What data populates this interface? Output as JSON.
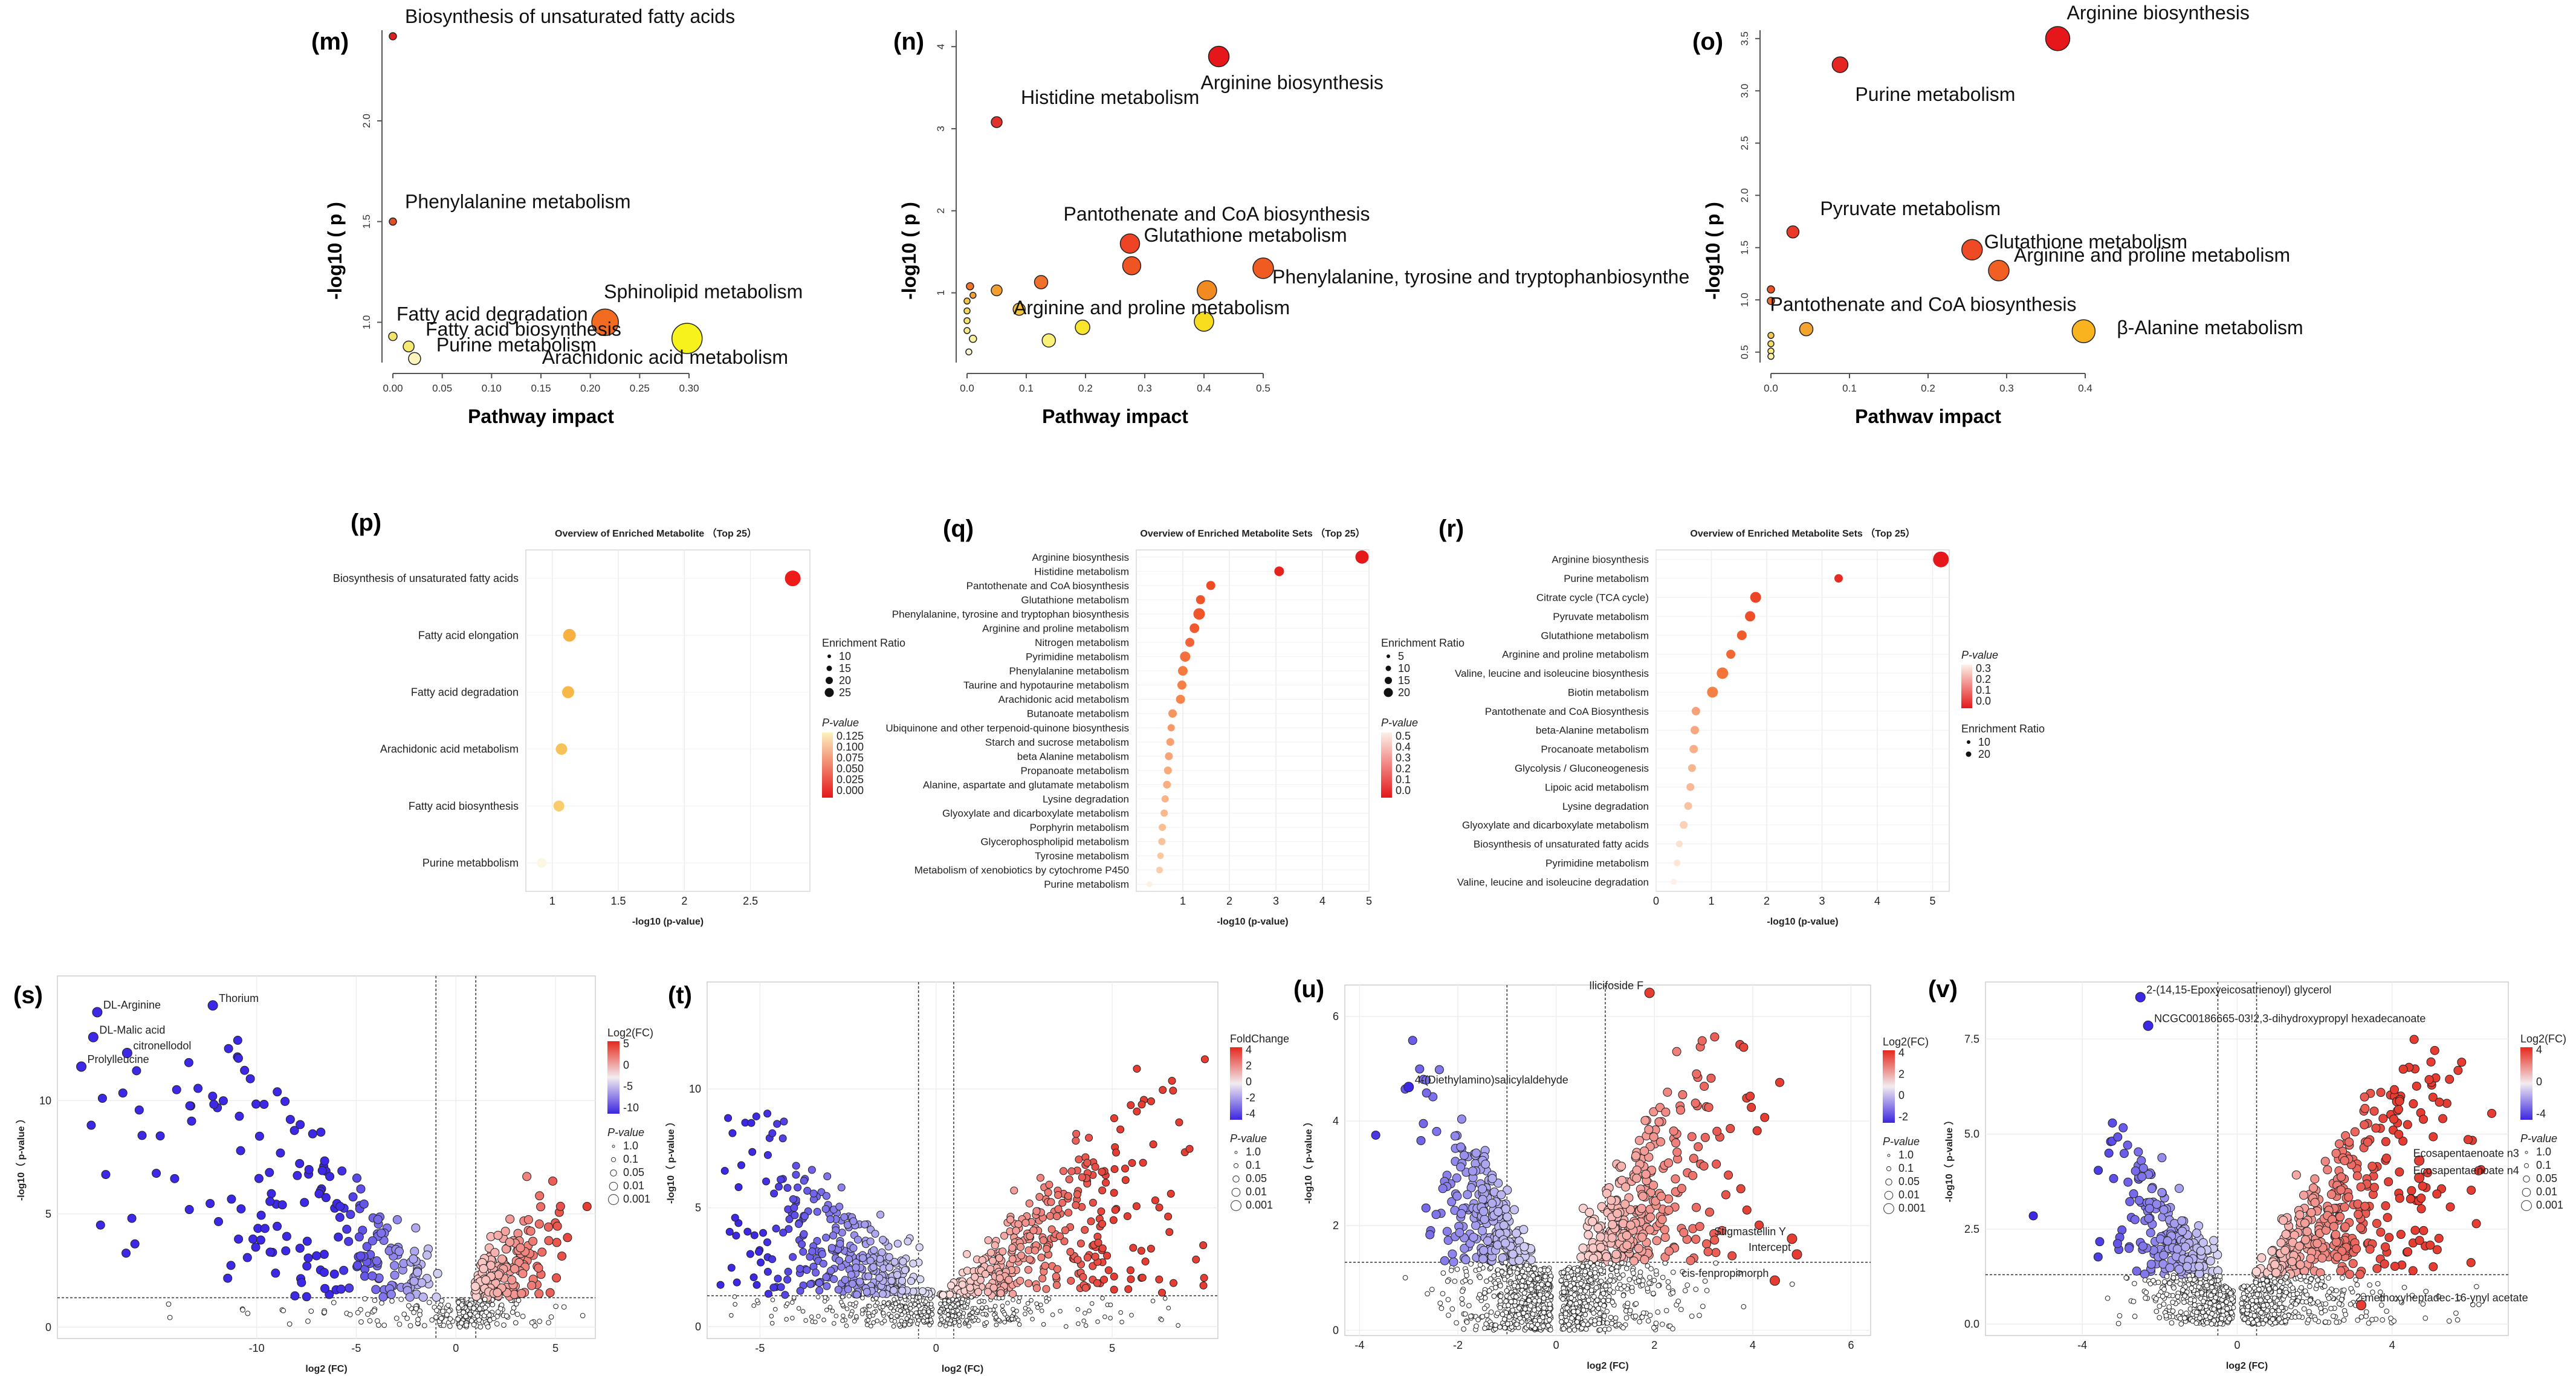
{
  "figure_letters": [
    "(m)",
    "(n)",
    "(o)",
    "(p)",
    "(q)",
    "(r)",
    "(s)",
    "(t)",
    "(u)",
    "(v)"
  ],
  "chart_data": [
    {
      "id": "m",
      "type": "scatter",
      "title": "",
      "xlabel": "Pathway impact",
      "ylabel": "-log10 ( p )",
      "xlim": [
        0,
        0.3
      ],
      "ylim": [
        0.8,
        2.45
      ],
      "xticks": [
        "0.00",
        "0.05",
        "0.10",
        "0.15",
        "0.20",
        "0.25",
        "0.30"
      ],
      "yticks": [
        "1.0",
        "1.5",
        "2.0"
      ],
      "points": [
        {
          "x": 0.0,
          "y": 2.42,
          "size": 6,
          "color": "#e0201f",
          "label": "Biosynthesis of unsaturated fatty acids"
        },
        {
          "x": 0.0,
          "y": 1.5,
          "size": 6,
          "color": "#e0502a",
          "label": "Phenylalanine metabolism"
        },
        {
          "x": 0.0,
          "y": 0.93,
          "size": 7,
          "color": "#f2e36a",
          "label": "Fatty acid degradation"
        },
        {
          "x": 0.016,
          "y": 0.88,
          "size": 9,
          "color": "#f5ea70",
          "label": "Fatty acid biosynthesis"
        },
        {
          "x": 0.022,
          "y": 0.82,
          "size": 10,
          "color": "#fbf4bd",
          "label": "Purine metabolism"
        },
        {
          "x": 0.215,
          "y": 1.0,
          "size": 22,
          "color": "#f26b21",
          "label": "Sphinolipid metabolism"
        },
        {
          "x": 0.298,
          "y": 0.92,
          "size": 25,
          "color": "#f7f21c",
          "label": "Arachidonic acid metabolism"
        }
      ]
    },
    {
      "id": "n",
      "type": "scatter",
      "title": "",
      "xlabel": "Pathway impact",
      "ylabel": "-log10 ( p )",
      "xlim": [
        0,
        0.5
      ],
      "ylim": [
        0.15,
        4.2
      ],
      "xticks": [
        "0.0",
        "0.1",
        "0.2",
        "0.3",
        "0.4",
        "0.5"
      ],
      "yticks": [
        "1",
        "2",
        "3",
        "4"
      ],
      "points": [
        {
          "x": 0.425,
          "y": 3.88,
          "size": 17,
          "color": "#e5171a",
          "label": "Arginine biosynthesis"
        },
        {
          "x": 0.05,
          "y": 3.08,
          "size": 9,
          "color": "#e2302a",
          "label": "Histidine metabolism"
        },
        {
          "x": 0.275,
          "y": 1.6,
          "size": 16,
          "color": "#ec4424",
          "label": "Pantothenate and CoA biosynthesis"
        },
        {
          "x": 0.278,
          "y": 1.33,
          "size": 15,
          "color": "#ef5522",
          "label": "Glutathione metabolism"
        },
        {
          "x": 0.5,
          "y": 1.3,
          "size": 17,
          "color": "#f05b22",
          "label": "Phenylalanine, tyrosine and tryptophanbiosynthe"
        },
        {
          "x": 0.405,
          "y": 1.03,
          "size": 16,
          "color": "#f28a22",
          "label": ""
        },
        {
          "x": 0.4,
          "y": 0.65,
          "size": 16,
          "color": "#f8dd1f",
          "label": "Arginine and proline metabolism"
        },
        {
          "x": 0.125,
          "y": 1.13,
          "size": 11,
          "color": "#f0702a",
          "label": ""
        },
        {
          "x": 0.05,
          "y": 1.03,
          "size": 9,
          "color": "#f39e2e",
          "label": ""
        },
        {
          "x": 0.088,
          "y": 0.8,
          "size": 10,
          "color": "#f5c33a",
          "label": ""
        },
        {
          "x": 0.195,
          "y": 0.58,
          "size": 12,
          "color": "#f8e52c",
          "label": ""
        },
        {
          "x": 0.138,
          "y": 0.42,
          "size": 11,
          "color": "#faf07a",
          "label": ""
        },
        {
          "x": 0.005,
          "y": 1.08,
          "size": 6,
          "color": "#f2742a",
          "label": ""
        },
        {
          "x": 0.01,
          "y": 0.97,
          "size": 5,
          "color": "#f3a33a",
          "label": ""
        },
        {
          "x": 0.0,
          "y": 0.9,
          "size": 5,
          "color": "#f5c444",
          "label": ""
        },
        {
          "x": 0.0,
          "y": 0.78,
          "size": 5,
          "color": "#f6d657",
          "label": ""
        },
        {
          "x": 0.0,
          "y": 0.66,
          "size": 5,
          "color": "#f7e26a",
          "label": ""
        },
        {
          "x": 0.0,
          "y": 0.54,
          "size": 5,
          "color": "#f9ea86",
          "label": ""
        },
        {
          "x": 0.01,
          "y": 0.44,
          "size": 6,
          "color": "#faf29e",
          "label": ""
        },
        {
          "x": 0.003,
          "y": 0.28,
          "size": 5,
          "color": "#fcf8d2",
          "label": ""
        }
      ]
    },
    {
      "id": "o",
      "type": "scatter",
      "title": "",
      "xlabel": "Pathwav impact",
      "ylabel": "-log10 ( p )",
      "xlim": [
        0,
        0.4
      ],
      "ylim": [
        0.4,
        3.58
      ],
      "xticks": [
        "0.0",
        "0.1",
        "0.2",
        "0.3",
        "0.4"
      ],
      "yticks": [
        "0.5",
        "1.0",
        "1.5",
        "2.0",
        "2.5",
        "3.0",
        "3.5"
      ],
      "points": [
        {
          "x": 0.365,
          "y": 3.5,
          "size": 20,
          "color": "#e5171a",
          "label": "Arginine biosynthesis"
        },
        {
          "x": 0.088,
          "y": 3.25,
          "size": 13,
          "color": "#e62620",
          "label": "Purine metabolism"
        },
        {
          "x": 0.028,
          "y": 1.65,
          "size": 10,
          "color": "#ea3a26",
          "label": "Pyruvate metabolism"
        },
        {
          "x": 0.256,
          "y": 1.48,
          "size": 17,
          "color": "#ee4a24",
          "label": "Glutathione metabolism"
        },
        {
          "x": 0.29,
          "y": 1.28,
          "size": 17,
          "color": "#f15f22",
          "label": "Arginine and proline metabolism"
        },
        {
          "x": 0.045,
          "y": 0.72,
          "size": 11,
          "color": "#f5a32f",
          "label": "Pantothenate and CoA biosynthesis"
        },
        {
          "x": 0.398,
          "y": 0.7,
          "size": 19,
          "color": "#f8b31e",
          "label": "β-Alanine metabolism"
        },
        {
          "x": 0.0,
          "y": 1.1,
          "size": 6,
          "color": "#ec5028",
          "label": ""
        },
        {
          "x": 0.0,
          "y": 0.99,
          "size": 6,
          "color": "#ef6a2b",
          "label": ""
        },
        {
          "x": 0.0,
          "y": 0.66,
          "size": 5,
          "color": "#f5c84a",
          "label": ""
        },
        {
          "x": 0.0,
          "y": 0.58,
          "size": 5,
          "color": "#f7dc62",
          "label": ""
        },
        {
          "x": 0.0,
          "y": 0.51,
          "size": 5,
          "color": "#f9ea84",
          "label": ""
        },
        {
          "x": 0.0,
          "y": 0.46,
          "size": 5,
          "color": "#fbf2b0",
          "label": ""
        }
      ]
    },
    {
      "id": "p",
      "type": "dot",
      "title": "Overview of Enriched Metabolite （Top 25）",
      "xlabel": "-log10 (p-value)",
      "xlim": [
        0.8,
        2.95
      ],
      "xticks": [
        1.0,
        1.5,
        2.0,
        2.5
      ],
      "categories": [
        "Biosynthesis of unsaturated fatty acids",
        "Fatty acid elongation",
        "Fatty acid degradation",
        "Arachidonic acid metabolism",
        "Fatty acid biosynthesis",
        "Purine metabbolism"
      ],
      "values": [
        2.82,
        1.13,
        1.12,
        1.07,
        1.05,
        0.92
      ],
      "ratios": [
        20,
        15,
        14,
        13,
        12,
        10
      ],
      "colors": [
        "#ee1b1b",
        "#f8b040",
        "#f8b848",
        "#f8c25a",
        "#f9cc6c",
        "#fdf6e2"
      ],
      "legend": {
        "size_title": "Enrichment Ratio",
        "sizes": [
          "10",
          "15",
          "20",
          "25"
        ],
        "color_title": "P-value",
        "color_ticks": [
          "0.125",
          "0.100",
          "0.075",
          "0.050",
          "0.025",
          "0.000"
        ]
      }
    },
    {
      "id": "q",
      "type": "dot",
      "title": "Overview of Enriched Metabolite Sets （Top 25）",
      "xlabel": "-log10 (p-value)",
      "xlim": [
        0,
        5
      ],
      "xticks": [
        1,
        2,
        3,
        4,
        5
      ],
      "categories": [
        "Arginine biosynthesis",
        "Histidine metabolism",
        "Pantothenate and CoA biosynthesis",
        "Glutathione metabolism",
        "Phenylalanine, tyrosine and tryptophan biosynthesis",
        "Arginine and proline metabolism",
        "Nitrogen metabolism",
        "Pyrimidine metabolism",
        "Phenylalanine metabolism",
        "Taurine and hypotaurine metabolism",
        "Arachidonic acid metabolism",
        "Butanoate metabolism",
        "Ubiquinone and other terpenoid-quinone biosynthesis",
        "Starch and sucrose metabolism",
        "beta Alanine metabolism",
        "Propanoate metabolism",
        "Alanine, aspartate and glutamate metabolism",
        "Lysine degradation",
        "Glyoxylate and dicarboxylate metabolism",
        "Porphyrin metabolism",
        "Glycerophospholipid metabolism",
        "Tyrosine metabolism",
        "Metabolism of xenobiotics by cytochrome P450",
        "Purine metabolism"
      ],
      "values": [
        4.85,
        3.07,
        1.6,
        1.38,
        1.35,
        1.25,
        1.15,
        1.05,
        1.0,
        0.98,
        0.95,
        0.78,
        0.75,
        0.73,
        0.7,
        0.68,
        0.66,
        0.62,
        0.6,
        0.56,
        0.55,
        0.52,
        0.5,
        0.28
      ],
      "ratios": [
        16,
        10,
        9,
        9,
        13,
        10,
        9,
        11,
        10,
        9,
        9,
        8,
        6,
        7,
        7,
        7,
        7,
        6,
        6,
        6,
        6,
        5,
        5,
        4
      ],
      "colors": [
        "#e5171a",
        "#e8211c",
        "#ef4a20",
        "#f0552a",
        "#f0552a",
        "#f05a2e",
        "#f26338",
        "#f3703c",
        "#f47a40",
        "#f48048",
        "#f5864e",
        "#f69560",
        "#f69a68",
        "#f7a070",
        "#f7a574",
        "#f8aa7a",
        "#f8ae80",
        "#f9b488",
        "#f9b88c",
        "#fabe92",
        "#fac298",
        "#fbc8a0",
        "#fbcca6",
        "#fdf0e4"
      ],
      "legend": {
        "size_title": "Enrichment Ratio",
        "sizes": [
          "5",
          "10",
          "15",
          "20"
        ],
        "color_title": "P-value",
        "color_ticks": [
          "0.5",
          "0.4",
          "0.3",
          "0.2",
          "0.1",
          "0.0"
        ]
      }
    },
    {
      "id": "r",
      "type": "dot",
      "title": "Overview of Enriched Metabolite  Sets （Top 25）",
      "xlabel": "-log10 (p-value)",
      "xlim": [
        0,
        5.3
      ],
      "xticks": [
        0,
        1,
        2,
        3,
        4,
        5
      ],
      "categories": [
        "Arginine biosynthesis",
        "Purine metabolism",
        "Citrate cycle (TCA cycle)",
        "Pyruvate metabolism",
        "Glutathione metabolism",
        "Arginine and proline metabolism",
        "Valine, leucine and isoleucine biosynthesis",
        "Biotin metabolism",
        "Pantothenate and CoA Biosynthesis",
        "beta-Alanine metabolism",
        "Procanoate metabolism",
        "Glycolysis / Gluconeogenesis",
        "Lipoic acid metabolism",
        "Lysine degradation",
        "Glyoxylate and dicarboxylate metabolism",
        "Biosynthesis of unsaturated fatty acids",
        "Pyrimidine metabolism",
        "Valine, leucine and isoleucine degradation"
      ],
      "values": [
        5.15,
        3.3,
        1.8,
        1.7,
        1.55,
        1.35,
        1.2,
        1.02,
        0.72,
        0.7,
        0.68,
        0.65,
        0.62,
        0.58,
        0.5,
        0.42,
        0.38,
        0.32
      ],
      "ratios": [
        20,
        8,
        12,
        11,
        10,
        9,
        13,
        12,
        8,
        8,
        8,
        7,
        7,
        7,
        7,
        5,
        5,
        4
      ],
      "colors": [
        "#e5171a",
        "#e72a22",
        "#ec4426",
        "#ee4e28",
        "#f05a2c",
        "#f26832",
        "#f37438",
        "#f58044",
        "#f7a27a",
        "#f8a880",
        "#f9b08a",
        "#f9b490",
        "#fab896",
        "#fbc2a2",
        "#fcd0b4",
        "#fce0cc",
        "#fde6d6",
        "#fef0e8"
      ],
      "legend": {
        "color_title": "P-value",
        "color_ticks": [
          "0.3",
          "0.2",
          "0.1",
          "0.0"
        ],
        "size_title": "Enrichment Ratio",
        "sizes": [
          "10",
          "20"
        ]
      }
    },
    {
      "id": "s",
      "type": "scatter",
      "title": "",
      "xlabel": "log2 (FC)",
      "ylabel": "-log10（ p-value ）",
      "xlim": [
        -20,
        7
      ],
      "ylim": [
        -0.5,
        15.5
      ],
      "xticks": [
        "-10",
        "-5",
        "0",
        "5"
      ],
      "yticks": [
        "0",
        "5",
        "10"
      ],
      "thresholds": {
        "x": [
          -1,
          1
        ],
        "y": 1.3
      },
      "labels": [
        {
          "text": "Thorium",
          "x": -12.2,
          "y": 14.2
        },
        {
          "text": "DL-Arginine",
          "x": -18.0,
          "y": 13.9
        },
        {
          "text": "DL-Malic acid",
          "x": -18.2,
          "y": 12.8
        },
        {
          "text": "citronellodol",
          "x": -16.5,
          "y": 12.1
        },
        {
          "text": "Prolylleucine",
          "x": -18.8,
          "y": 11.5
        }
      ],
      "legend": {
        "color_title": "Log2(FC)",
        "color_ticks": [
          "5",
          "0",
          "-5",
          "-10"
        ],
        "size_title": "P-value",
        "sizes": [
          "1.0",
          "0.1",
          "0.05",
          "0.01",
          "0.001"
        ]
      }
    },
    {
      "id": "t",
      "type": "scatter",
      "title": "",
      "xlabel": "log2 (FC)",
      "ylabel": "-log10（ p-value ）",
      "xlim": [
        -6.5,
        8
      ],
      "ylim": [
        -0.5,
        14.5
      ],
      "xticks": [
        "-5",
        "0",
        "5"
      ],
      "yticks": [
        "0",
        "5",
        "10"
      ],
      "thresholds": {
        "x": [
          -0.5,
          0.5
        ],
        "y": 1.3
      },
      "labels": [],
      "legend": {
        "color_title": "FoldChange",
        "color_ticks": [
          "4",
          "2",
          "0",
          "-2",
          "-4"
        ],
        "size_title": "P-value",
        "sizes": [
          "1.0",
          "0.1",
          "0.05",
          "0.01",
          "0.001"
        ]
      }
    },
    {
      "id": "u",
      "type": "scatter",
      "title": "",
      "xlabel": "log2 (FC)",
      "ylabel": "-log10（ p-value ）",
      "xlim": [
        -4.3,
        6.4
      ],
      "ylim": [
        -0.1,
        6.6
      ],
      "xticks": [
        "-4",
        "-2",
        "0",
        "2",
        "4",
        "6"
      ],
      "yticks": [
        "0",
        "2",
        "4",
        "6"
      ],
      "thresholds": {
        "x": [
          -1,
          1
        ],
        "y": 1.3
      },
      "labels": [
        {
          "text": "Ilicifoside F",
          "x": 1.9,
          "y": 6.45
        },
        {
          "text": "4-(Diethylamino)salicylaldehyde",
          "x": -3.0,
          "y": 4.65
        },
        {
          "text": "Stigmastellin Y",
          "x": 4.8,
          "y": 1.75
        },
        {
          "text": "Intercept",
          "x": 4.9,
          "y": 1.45
        },
        {
          "text": "cis-fenpropimorph",
          "x": 4.45,
          "y": 0.95
        }
      ],
      "legend": {
        "color_title": "Log2(FC)",
        "color_ticks": [
          "4",
          "2",
          "0",
          "-2"
        ],
        "size_title": "P-value",
        "sizes": [
          "1.0",
          "0.1",
          "0.05",
          "0.01",
          "0.001"
        ]
      }
    },
    {
      "id": "v",
      "type": "scatter",
      "title": "",
      "xlabel": "log2 (FC)",
      "ylabel": "-log10（ p-value ）",
      "xlim": [
        -6.5,
        7
      ],
      "ylim": [
        -0.3,
        9.0
      ],
      "xticks": [
        "-4",
        "0",
        "4"
      ],
      "yticks": [
        "0.0",
        "2.5",
        "5.0",
        "7.5"
      ],
      "thresholds": {
        "x": [
          -0.5,
          0.5
        ],
        "y": 1.3
      },
      "labels": [
        {
          "text": "2-(14,15-Epoxyeicosatrienoyl) glycerol",
          "x": -2.5,
          "y": 8.6
        },
        {
          "text": "NCGC00186665-03!2,3-dihydroxypropyl hexadecanoate",
          "x": -2.3,
          "y": 7.85
        },
        {
          "text": "Ecosapentaenoate n3",
          "x": 4.7,
          "y": 4.3
        },
        {
          "text": "Ecosapentaenoate n4",
          "x": 4.7,
          "y": 3.85
        },
        {
          "text": "2-methoxyheptadec-16-ynyl acetate",
          "x": 3.2,
          "y": 0.5
        }
      ],
      "legend": {
        "color_title": "Log2(FC)",
        "color_ticks": [
          "4",
          "0",
          "-4"
        ],
        "size_title": "P-value",
        "sizes": [
          "1.0",
          "0.1",
          "0.05",
          "0.01",
          "0.001"
        ]
      }
    }
  ]
}
